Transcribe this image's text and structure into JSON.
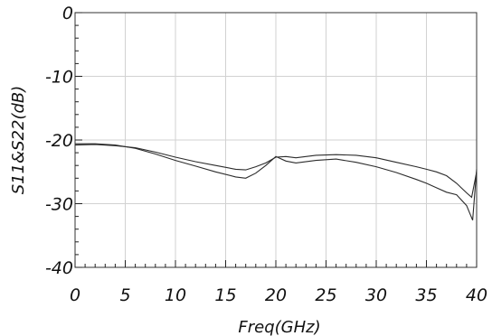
{
  "chart_data": {
    "type": "line",
    "xlabel": "Freq(GHz)",
    "ylabel": "S11&S22(dB)",
    "xlim": [
      0,
      40
    ],
    "ylim": [
      -40,
      0
    ],
    "xticks": [
      "0",
      "5",
      "10",
      "15",
      "20",
      "25",
      "30",
      "35",
      "40"
    ],
    "yticks": [
      "0",
      "-10",
      "-20",
      "-30",
      "-40"
    ],
    "grid": true,
    "series": [
      {
        "x": [
          0,
          2,
          4,
          6,
          8,
          10,
          12,
          14,
          16,
          17,
          18,
          19,
          20,
          21,
          22,
          24,
          26,
          28,
          30,
          32,
          34,
          35,
          36,
          37,
          38,
          39,
          39.5,
          40
        ],
        "values": [
          -20.8,
          -20.7,
          -20.9,
          -21.2,
          -21.9,
          -22.7,
          -23.4,
          -24.0,
          -24.6,
          -24.7,
          -24.2,
          -23.6,
          -22.7,
          -22.6,
          -22.8,
          -22.4,
          -22.3,
          -22.4,
          -22.8,
          -23.5,
          -24.2,
          -24.6,
          -25.0,
          -25.6,
          -26.8,
          -28.3,
          -29.0,
          -25.0
        ]
      },
      {
        "x": [
          0,
          2,
          4,
          6,
          8,
          10,
          12,
          14,
          16,
          17,
          18,
          19,
          20,
          21,
          22,
          24,
          26,
          28,
          30,
          32,
          34,
          35,
          36,
          37,
          38,
          39,
          39.6,
          40
        ],
        "values": [
          -20.6,
          -20.6,
          -20.8,
          -21.3,
          -22.2,
          -23.2,
          -24.1,
          -25.0,
          -25.8,
          -26.0,
          -25.2,
          -24.0,
          -22.6,
          -23.3,
          -23.6,
          -23.2,
          -23.0,
          -23.5,
          -24.2,
          -25.1,
          -26.2,
          -26.8,
          -27.5,
          -28.2,
          -28.6,
          -30.3,
          -32.6,
          -24.6
        ]
      }
    ]
  }
}
